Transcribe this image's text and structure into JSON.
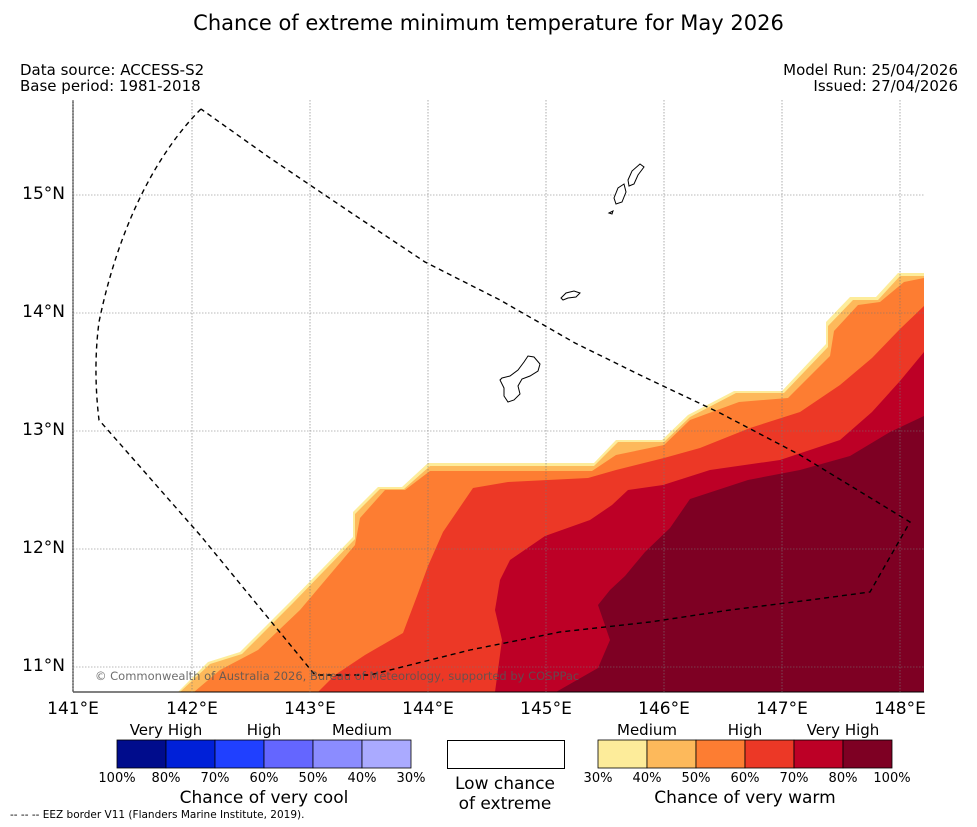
{
  "title": "Chance of extreme minimum temperature for May 2026",
  "header": {
    "data_source": "Data source: ACCESS-S2",
    "base_period": "Base period: 1981-2018",
    "model_run": "Model Run: 25/04/2026",
    "issued": "Issued: 27/04/2026"
  },
  "map": {
    "copyright": "© Commonwealth of Australia 2026, Bureau of Meteorology, supported by COSPPac",
    "lon_labels": [
      "141°E",
      "142°E",
      "143°E",
      "144°E",
      "145°E",
      "146°E",
      "147°E",
      "148°E"
    ],
    "lat_labels": [
      "15°N",
      "14°N",
      "13°N",
      "12°N",
      "11°N"
    ],
    "warm_colors": [
      "#fdec9a",
      "#fdb95b",
      "#fd7d32",
      "#ec3826",
      "#bd0026",
      "#7e0023"
    ]
  },
  "legend": {
    "cool": {
      "categories": [
        "Very High",
        "High",
        "Medium"
      ],
      "percent_labels": [
        "100%",
        "80%",
        "70%",
        "60%",
        "50%",
        "40%",
        "30%"
      ],
      "colors": [
        "#000c8c",
        "#0020d8",
        "#2040ff",
        "#6466ff",
        "#8b8cff",
        "#aaaaff"
      ],
      "caption": "Chance of very cool"
    },
    "low": {
      "caption_line1": "Low chance",
      "caption_line2": "of extreme"
    },
    "warm": {
      "categories": [
        "Medium",
        "High",
        "Very High"
      ],
      "percent_labels": [
        "30%",
        "40%",
        "50%",
        "60%",
        "70%",
        "80%",
        "100%"
      ],
      "colors": [
        "#fdec9a",
        "#fdb95b",
        "#fd7d32",
        "#ec3826",
        "#bd0026",
        "#7e0023"
      ],
      "caption": "Chance of very warm"
    }
  },
  "footer": "--  --  -- EEZ border V11 (Flanders Marine Institute, 2019)."
}
